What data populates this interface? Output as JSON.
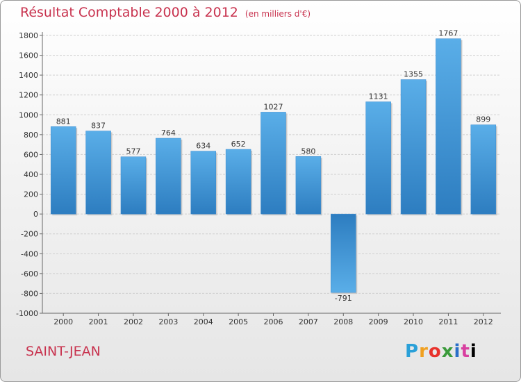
{
  "title": "Résultat Comptable 2000 à 2012",
  "subtitle": "(en milliers d'€)",
  "commune": "SAINT-JEAN",
  "logo_text": "Proxiti",
  "colors": {
    "bar_light": "#5aaee8",
    "bar_dark": "#2d7dc0",
    "title": "#c8324e",
    "grid": "#cfcfcf"
  },
  "chart_data": {
    "type": "bar",
    "title": "Résultat Comptable 2000 à 2012",
    "ylabel": "en milliers d'€",
    "xlabel": "",
    "categories": [
      "2000",
      "2001",
      "2002",
      "2003",
      "2004",
      "2005",
      "2006",
      "2007",
      "2008",
      "2009",
      "2010",
      "2011",
      "2012"
    ],
    "values": [
      881,
      837,
      577,
      764,
      634,
      652,
      1027,
      580,
      -791,
      1131,
      1355,
      1767,
      899
    ],
    "ylim": [
      -1000,
      1800
    ],
    "yticks": [
      1800,
      1600,
      1400,
      1200,
      1000,
      800,
      600,
      400,
      200,
      0,
      -200,
      -400,
      -600,
      -800,
      -1000
    ],
    "grid": true
  }
}
